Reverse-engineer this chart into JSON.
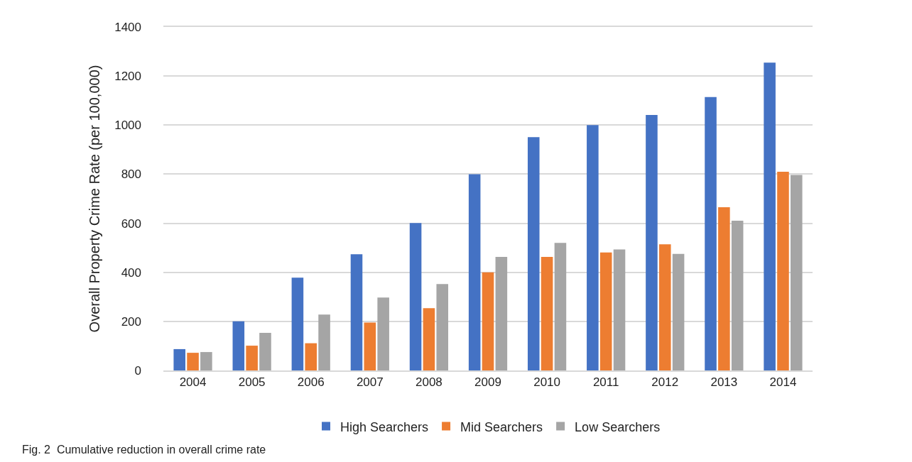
{
  "chart_data": {
    "type": "bar",
    "ylabel": "Overall Property Crime Rate (per 100,000)",
    "categories": [
      "2004",
      "2005",
      "2006",
      "2007",
      "2008",
      "2009",
      "2010",
      "2011",
      "2012",
      "2013",
      "2014"
    ],
    "series": [
      {
        "name": "High Searchers",
        "color": "#4472c4",
        "values": [
          87,
          200,
          378,
          474,
          601,
          800,
          951,
          1000,
          1041,
          1114,
          1255
        ]
      },
      {
        "name": "Mid Searchers",
        "color": "#ed7d31",
        "values": [
          72,
          101,
          111,
          195,
          254,
          400,
          463,
          481,
          514,
          665,
          810
        ]
      },
      {
        "name": "Low Searchers",
        "color": "#a5a5a5",
        "values": [
          75,
          153,
          228,
          297,
          352,
          463,
          520,
          493,
          475,
          610,
          797
        ]
      }
    ],
    "ylim": [
      0,
      1400
    ],
    "yticks": [
      0,
      200,
      400,
      600,
      800,
      1000,
      1200,
      1400
    ],
    "grid": "y",
    "legend": "bottom",
    "annotations": [
      "Fig. 2  Cumulative reduction in overall crime rate"
    ]
  }
}
